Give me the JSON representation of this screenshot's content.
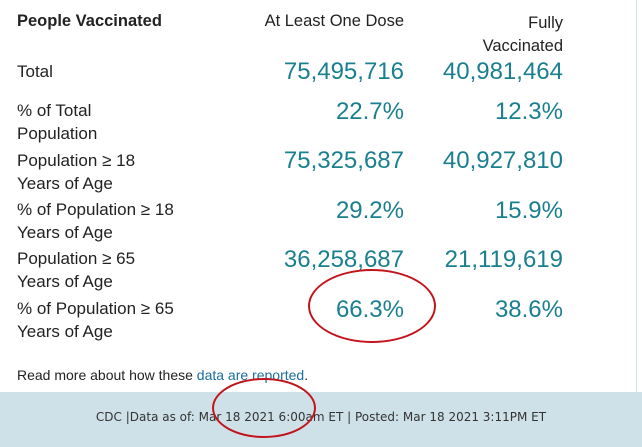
{
  "header": {
    "title": "People Vaccinated",
    "col1": "At Least One Dose",
    "col2_line1": "Fully",
    "col2_line2": "Vaccinated"
  },
  "rows": [
    {
      "label1": "Total",
      "label2": "",
      "v1": "75,495,716",
      "v2": "40,981,464"
    },
    {
      "label1": "% of Total",
      "label2": "Population",
      "v1": "22.7%",
      "v2": "12.3%"
    },
    {
      "label1": "Population ≥ 18",
      "label2": "Years of Age",
      "v1": "75,325,687",
      "v2": "40,927,810"
    },
    {
      "label1": "% of Population ≥ 18",
      "label2": "Years of Age",
      "v1": "29.2%",
      "v2": "15.9%"
    },
    {
      "label1": "Population ≥ 65",
      "label2": "Years of Age",
      "v1": "36,258,687",
      "v2": "21,119,619"
    },
    {
      "label1": "% of Population ≥ 65",
      "label2": "Years of Age",
      "v1": "66.3%",
      "v2": "38.6%"
    }
  ],
  "note": {
    "prefix": "Read more about how these ",
    "link": "data are reported",
    "suffix": "."
  },
  "footer": "CDC |Data as of: Mar 18 2021 6:00am ET | Posted: Mar 18 2021 3:11PM ET",
  "colors": {
    "value": "#1a7f8e",
    "annotation": "#c2141c",
    "footer_bg": "#cfe1e8"
  }
}
